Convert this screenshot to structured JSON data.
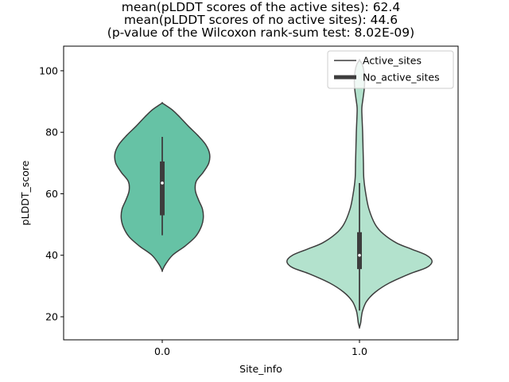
{
  "chart_data": {
    "type": "violin",
    "title_lines": [
      "mean(pLDDT scores of the active sites): 62.4",
      "mean(pLDDT scores of no active sites): 44.6",
      "(p-value of the Wilcoxon rank-sum test: 8.02E-09)"
    ],
    "xlabel": "Site_info",
    "ylabel": "pLDDT_score",
    "categories": [
      "0.0",
      "1.0"
    ],
    "ylim": [
      12.5,
      108
    ],
    "yticks": [
      20,
      40,
      60,
      80,
      100
    ],
    "legend": {
      "placement": "upper-right",
      "entries": [
        {
          "label": "Active_sites",
          "style": "thin-line"
        },
        {
          "label": "No_active_sites",
          "style": "thick-line"
        }
      ]
    },
    "colors": {
      "active_fill": "#66c2a5",
      "no_active_fill": "#b3e2cd",
      "outline": "#3d3d3d",
      "box": "#3d3d3d",
      "median": "#ffffff"
    },
    "violins": [
      {
        "category": "0.0",
        "name": "Active_sites",
        "median": 63.5,
        "q1": 53,
        "q3": 70.5,
        "whisker_low": 46.5,
        "whisker_high": 78.5,
        "profile": [
          [
            35,
            0
          ],
          [
            37,
            0.04
          ],
          [
            40,
            0.13
          ],
          [
            43,
            0.29
          ],
          [
            46,
            0.42
          ],
          [
            49,
            0.49
          ],
          [
            52,
            0.52
          ],
          [
            55,
            0.51
          ],
          [
            58,
            0.46
          ],
          [
            61,
            0.42
          ],
          [
            64,
            0.43
          ],
          [
            67,
            0.52
          ],
          [
            70,
            0.59
          ],
          [
            73,
            0.6
          ],
          [
            76,
            0.55
          ],
          [
            79,
            0.45
          ],
          [
            82,
            0.33
          ],
          [
            85,
            0.22
          ],
          [
            87,
            0.14
          ],
          [
            88.5,
            0.06
          ],
          [
            89.5,
            0
          ]
        ]
      },
      {
        "category": "1.0",
        "name": "No_active_sites",
        "median": 40,
        "q1": 35.5,
        "q3": 47.5,
        "whisker_low": 22,
        "whisker_high": 63.5,
        "profile": [
          [
            16.5,
            0
          ],
          [
            18,
            0.015
          ],
          [
            20,
            0.025
          ],
          [
            22,
            0.04
          ],
          [
            25,
            0.09
          ],
          [
            28,
            0.2
          ],
          [
            31,
            0.38
          ],
          [
            34,
            0.64
          ],
          [
            36,
            0.85
          ],
          [
            38,
            0.92
          ],
          [
            40,
            0.85
          ],
          [
            42,
            0.66
          ],
          [
            44,
            0.47
          ],
          [
            47,
            0.3
          ],
          [
            50,
            0.2
          ],
          [
            55,
            0.12
          ],
          [
            60,
            0.08
          ],
          [
            65,
            0.055
          ],
          [
            70,
            0.05
          ],
          [
            75,
            0.045
          ],
          [
            80,
            0.04
          ],
          [
            85,
            0.032
          ],
          [
            88,
            0.03
          ],
          [
            91,
            0.045
          ],
          [
            94,
            0.06
          ],
          [
            97,
            0.065
          ],
          [
            100,
            0.055
          ],
          [
            102,
            0.035
          ],
          [
            103.5,
            0
          ]
        ]
      }
    ]
  }
}
